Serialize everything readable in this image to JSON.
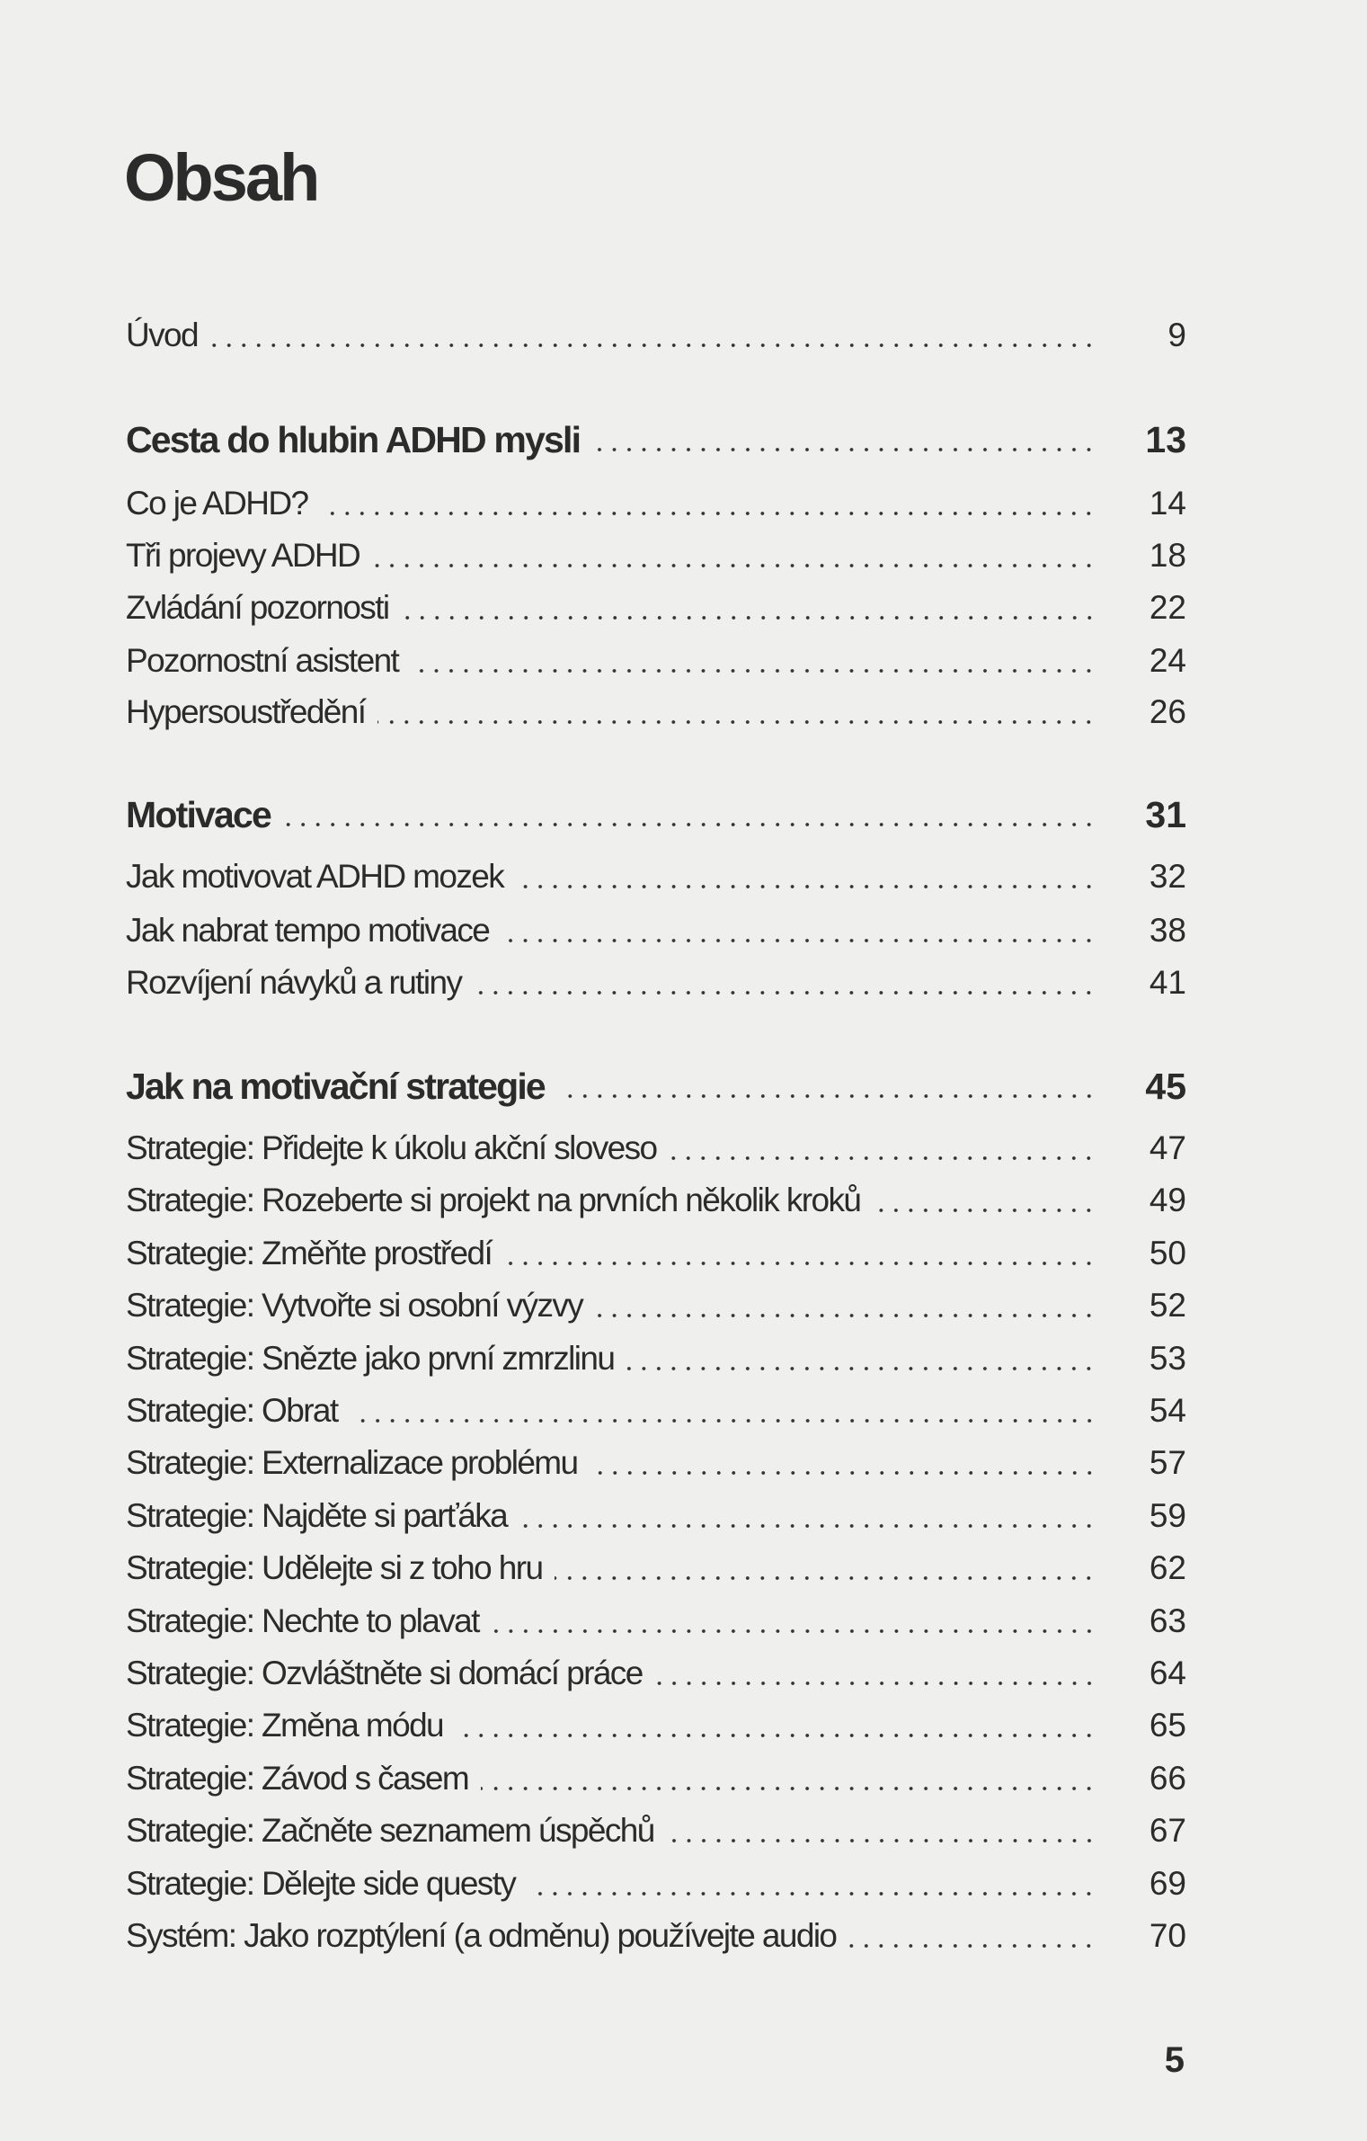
{
  "title": "Obsah",
  "entries": [
    {
      "label": "Úvod",
      "page": "9",
      "type": "entry"
    },
    {
      "label": "Cesta do hlubin ADHD mysli",
      "page": "13",
      "type": "section"
    },
    {
      "label": "Co je ADHD?",
      "page": "14",
      "type": "entry"
    },
    {
      "label": "Tři projevy ADHD",
      "page": "18",
      "type": "entry"
    },
    {
      "label": "Zvládání pozornosti",
      "page": "22",
      "type": "entry"
    },
    {
      "label": "Pozornostní asistent",
      "page": "24",
      "type": "entry"
    },
    {
      "label": "Hypersoustředění",
      "page": "26",
      "type": "entry"
    },
    {
      "label": "Motivace",
      "page": "31",
      "type": "section"
    },
    {
      "label": "Jak motivovat ADHD mozek",
      "page": "32",
      "type": "entry"
    },
    {
      "label": "Jak nabrat tempo motivace",
      "page": "38",
      "type": "entry"
    },
    {
      "label": "Rozvíjení návyků a rutiny",
      "page": "41",
      "type": "entry"
    },
    {
      "label": "Jak na motivační strategie",
      "page": "45",
      "type": "section"
    },
    {
      "label": "Strategie: Přidejte k úkolu akční sloveso",
      "page": "47",
      "type": "entry"
    },
    {
      "label": "Strategie: Rozeberte si projekt na prvních několik kroků",
      "page": "49",
      "type": "entry"
    },
    {
      "label": "Strategie: Změňte prostředí",
      "page": "50",
      "type": "entry"
    },
    {
      "label": "Strategie: Vytvořte si osobní výzvy",
      "page": "52",
      "type": "entry"
    },
    {
      "label": "Strategie: Snězte jako první zmrzlinu",
      "page": "53",
      "type": "entry"
    },
    {
      "label": "Strategie: Obrat",
      "page": "54",
      "type": "entry"
    },
    {
      "label": "Strategie: Externalizace problému",
      "page": "57",
      "type": "entry"
    },
    {
      "label": "Strategie: Najděte si parťáka",
      "page": "59",
      "type": "entry"
    },
    {
      "label": "Strategie: Udělejte si z toho hru",
      "page": "62",
      "type": "entry"
    },
    {
      "label": "Strategie: Nechte to plavat",
      "page": "63",
      "type": "entry"
    },
    {
      "label": "Strategie: Ozvláštněte si domácí práce",
      "page": "64",
      "type": "entry"
    },
    {
      "label": "Strategie: Změna módu",
      "page": "65",
      "type": "entry"
    },
    {
      "label": "Strategie: Závod s časem",
      "page": "66",
      "type": "entry"
    },
    {
      "label": "Strategie: Začněte seznamem úspěchů",
      "page": "67",
      "type": "entry"
    },
    {
      "label": "Strategie: Dělejte side questy",
      "page": "69",
      "type": "entry"
    },
    {
      "label": "Systém: Jako rozptýlení (a odměnu) používejte audio",
      "page": "70",
      "type": "entry"
    }
  ],
  "page_number": "5"
}
